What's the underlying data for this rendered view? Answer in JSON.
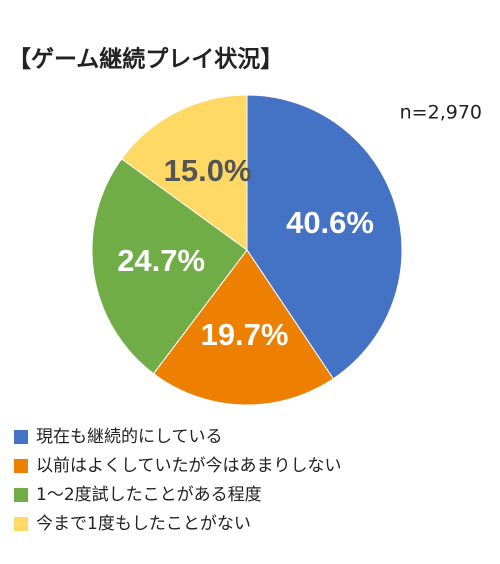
{
  "chart_data": {
    "type": "pie",
    "title": "【ゲーム継続プレイ状況】",
    "annotation": "n=2,970",
    "categories": [
      "現在も継続的にしている",
      "以前はよくしていたが今はあまりしない",
      "1〜2度試したことがある程度",
      "今まで1度もしたことがない"
    ],
    "values": [
      40.6,
      19.7,
      24.7,
      15.0
    ],
    "value_labels": [
      "40.6%",
      "19.7%",
      "24.7%",
      "15.0%"
    ],
    "colors": [
      "#4472c4",
      "#ed8000",
      "#70ad47",
      "#ffd966"
    ],
    "legend": "bottom"
  }
}
